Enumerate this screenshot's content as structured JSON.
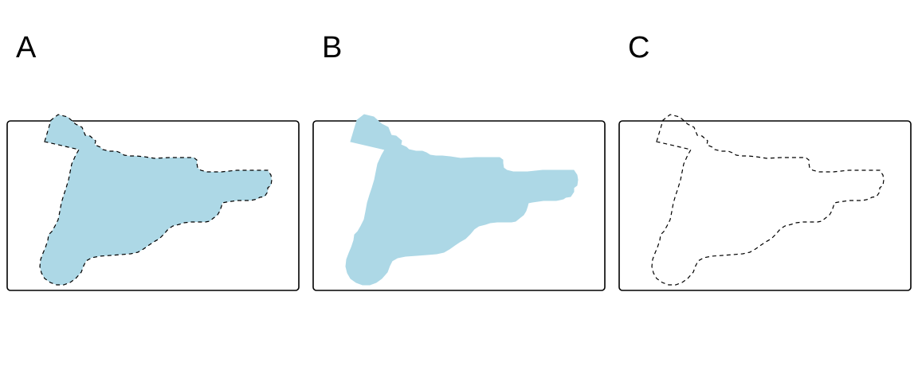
{
  "figure": {
    "panels": [
      {
        "label": "A",
        "fill": true,
        "outline": true
      },
      {
        "label": "B",
        "fill": true,
        "outline": false
      },
      {
        "label": "C",
        "fill": false,
        "outline": true
      }
    ],
    "colors": {
      "fill": "#add8e6",
      "outline": "#000000",
      "frame": "#000000",
      "background": "#ffffff"
    },
    "outline_style": "dashed"
  }
}
